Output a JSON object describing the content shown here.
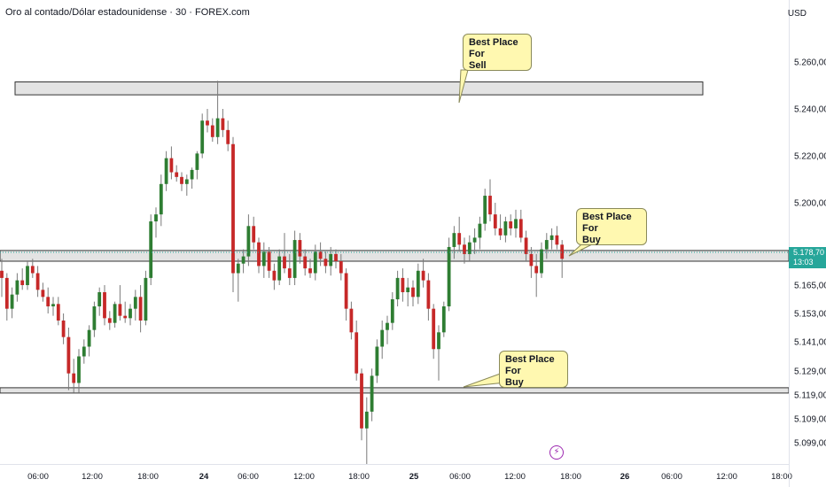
{
  "header": {
    "title": "Oro al contado/Dólar estadounidense · 30 · FOREX.com",
    "currency": "USD"
  },
  "price_badge": {
    "price": "5.178,70",
    "countdown": "13:03"
  },
  "annotations": {
    "sell": [
      "Best Place For",
      "Sell"
    ],
    "buy_right": [
      "Best Place For",
      "Buy"
    ],
    "buy_bottom": [
      "Best Place For",
      "Buy"
    ]
  },
  "flash_icon": "lightning-icon",
  "colors": {
    "bull": "#26a69a",
    "bull_candle": "#2e7d32",
    "bear": "#c62828",
    "zone_fill": "#d9d9d9",
    "callout_fill": "#fff8b0"
  },
  "chart_data": {
    "type": "candlestick",
    "y_axis": {
      "ticks": [
        "5.260,00",
        "5.240,00",
        "5.220,00",
        "5.200,00",
        "5.165,00",
        "5.153,00",
        "5.141,00",
        "5.129,00",
        "5.119,00",
        "5.109,00",
        "5.099,00"
      ],
      "tick_values": [
        5260,
        5240,
        5220,
        5200,
        5165,
        5153,
        5141,
        5129,
        5119,
        5109,
        5099
      ]
    },
    "x_axis": {
      "ticks": [
        "06:00",
        "12:00",
        "18:00",
        "24",
        "06:00",
        "12:00",
        "18:00",
        "25",
        "06:00",
        "12:00",
        "18:00",
        "26",
        "06:00",
        "12:00",
        "18:00"
      ]
    },
    "zones": [
      {
        "name": "sell-zone",
        "top": 5251.5,
        "bottom": 5246
      },
      {
        "name": "mid-zone",
        "top": 5179.5,
        "bottom": 5175
      },
      {
        "name": "buy-zone",
        "top": 5122,
        "bottom": 5120
      }
    ],
    "last_price": 5178.7,
    "candles": [
      [
        5171,
        5176,
        5160,
        5168
      ],
      [
        5168,
        5170,
        5150,
        5155
      ],
      [
        5155,
        5164,
        5151,
        5161
      ],
      [
        5161,
        5170,
        5158,
        5167
      ],
      [
        5167,
        5172,
        5163,
        5165
      ],
      [
        5165,
        5175,
        5163,
        5173
      ],
      [
        5173,
        5176,
        5168,
        5170
      ],
      [
        5170,
        5173,
        5160,
        5163
      ],
      [
        5163,
        5166,
        5158,
        5160
      ],
      [
        5160,
        5164,
        5153,
        5156
      ],
      [
        5156,
        5160,
        5152,
        5157
      ],
      [
        5157,
        5160,
        5148,
        5150
      ],
      [
        5150,
        5153,
        5140,
        5143
      ],
      [
        5143,
        5147,
        5121,
        5128
      ],
      [
        5128,
        5134,
        5120,
        5124
      ],
      [
        5124,
        5138,
        5120,
        5135
      ],
      [
        5135,
        5142,
        5132,
        5139
      ],
      [
        5139,
        5148,
        5135,
        5146
      ],
      [
        5146,
        5158,
        5143,
        5156
      ],
      [
        5156,
        5164,
        5152,
        5162
      ],
      [
        5162,
        5165,
        5148,
        5151
      ],
      [
        5151,
        5154,
        5146,
        5149
      ],
      [
        5149,
        5158,
        5147,
        5157
      ],
      [
        5157,
        5165,
        5150,
        5152
      ],
      [
        5152,
        5158,
        5149,
        5151
      ],
      [
        5151,
        5157,
        5148,
        5155
      ],
      [
        5155,
        5163,
        5150,
        5160
      ],
      [
        5160,
        5165,
        5145,
        5150
      ],
      [
        5150,
        5171,
        5148,
        5168
      ],
      [
        5168,
        5195,
        5165,
        5192
      ],
      [
        5192,
        5198,
        5185,
        5195
      ],
      [
        5195,
        5212,
        5190,
        5208
      ],
      [
        5208,
        5222,
        5205,
        5219
      ],
      [
        5219,
        5224,
        5210,
        5213
      ],
      [
        5213,
        5216,
        5209,
        5211
      ],
      [
        5211,
        5213,
        5205,
        5208
      ],
      [
        5208,
        5212,
        5203,
        5210
      ],
      [
        5210,
        5215,
        5206,
        5214
      ],
      [
        5214,
        5222,
        5210,
        5221
      ],
      [
        5221,
        5238,
        5219,
        5235
      ],
      [
        5235,
        5240,
        5230,
        5233
      ],
      [
        5233,
        5236,
        5226,
        5228
      ],
      [
        5228,
        5252,
        5225,
        5236
      ],
      [
        5236,
        5240,
        5228,
        5231
      ],
      [
        5231,
        5235,
        5222,
        5225
      ],
      [
        5225,
        5228,
        5162,
        5170
      ],
      [
        5170,
        5176,
        5158,
        5174
      ],
      [
        5174,
        5180,
        5170,
        5177
      ],
      [
        5177,
        5195,
        5173,
        5190
      ],
      [
        5190,
        5194,
        5180,
        5183
      ],
      [
        5183,
        5185,
        5170,
        5173
      ],
      [
        5173,
        5183,
        5168,
        5179
      ],
      [
        5179,
        5181,
        5168,
        5171
      ],
      [
        5171,
        5174,
        5163,
        5167
      ],
      [
        5167,
        5180,
        5165,
        5177
      ],
      [
        5177,
        5187,
        5170,
        5172
      ],
      [
        5172,
        5178,
        5165,
        5168
      ],
      [
        5168,
        5188,
        5165,
        5184
      ],
      [
        5184,
        5187,
        5174,
        5177
      ],
      [
        5177,
        5180,
        5169,
        5172
      ],
      [
        5172,
        5176,
        5168,
        5170
      ],
      [
        5170,
        5182,
        5167,
        5179
      ],
      [
        5179,
        5183,
        5173,
        5176
      ],
      [
        5176,
        5179,
        5170,
        5173
      ],
      [
        5173,
        5181,
        5169,
        5178
      ],
      [
        5178,
        5180,
        5172,
        5175
      ],
      [
        5175,
        5178,
        5167,
        5170
      ],
      [
        5170,
        5172,
        5150,
        5155
      ],
      [
        5155,
        5158,
        5142,
        5145
      ],
      [
        5145,
        5150,
        5125,
        5128
      ],
      [
        5128,
        5130,
        5100,
        5105
      ],
      [
        5105,
        5118,
        5090,
        5112
      ],
      [
        5112,
        5130,
        5108,
        5127
      ],
      [
        5127,
        5142,
        5124,
        5139
      ],
      [
        5139,
        5150,
        5134,
        5146
      ],
      [
        5146,
        5152,
        5140,
        5149
      ],
      [
        5149,
        5162,
        5146,
        5159
      ],
      [
        5159,
        5171,
        5156,
        5168
      ],
      [
        5168,
        5172,
        5158,
        5162
      ],
      [
        5162,
        5168,
        5156,
        5164
      ],
      [
        5164,
        5167,
        5156,
        5160
      ],
      [
        5160,
        5174,
        5157,
        5171
      ],
      [
        5171,
        5176,
        5164,
        5167
      ],
      [
        5167,
        5170,
        5150,
        5155
      ],
      [
        5155,
        5157,
        5134,
        5138
      ],
      [
        5138,
        5148,
        5125,
        5145
      ],
      [
        5145,
        5158,
        5143,
        5156
      ],
      [
        5156,
        5185,
        5154,
        5181
      ],
      [
        5181,
        5190,
        5176,
        5187
      ],
      [
        5187,
        5194,
        5179,
        5182
      ],
      [
        5182,
        5185,
        5174,
        5178
      ],
      [
        5178,
        5186,
        5175,
        5183
      ],
      [
        5183,
        5189,
        5178,
        5185
      ],
      [
        5185,
        5194,
        5180,
        5191
      ],
      [
        5191,
        5206,
        5188,
        5203
      ],
      [
        5203,
        5210,
        5192,
        5195
      ],
      [
        5195,
        5200,
        5186,
        5189
      ],
      [
        5189,
        5195,
        5184,
        5186
      ],
      [
        5186,
        5194,
        5183,
        5192
      ],
      [
        5192,
        5195,
        5186,
        5189
      ],
      [
        5189,
        5197,
        5185,
        5193
      ],
      [
        5193,
        5197,
        5183,
        5185
      ],
      [
        5185,
        5188,
        5175,
        5178
      ],
      [
        5178,
        5181,
        5168,
        5173
      ],
      [
        5173,
        5178,
        5160,
        5170
      ],
      [
        5170,
        5183,
        5168,
        5180
      ],
      [
        5180,
        5187,
        5176,
        5184
      ],
      [
        5184,
        5189,
        5180,
        5186
      ],
      [
        5186,
        5190,
        5180,
        5182
      ],
      [
        5182,
        5184,
        5168,
        5176
      ]
    ]
  }
}
